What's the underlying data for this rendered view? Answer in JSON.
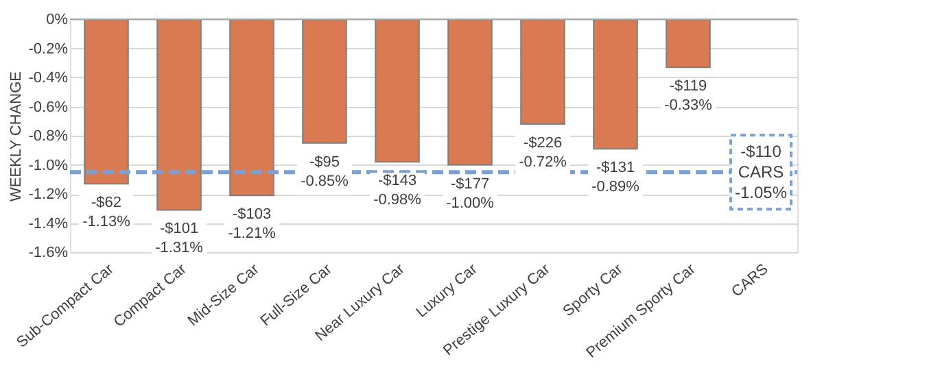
{
  "chart_data": {
    "type": "bar",
    "ylabel": "WEEKLY CHANGE",
    "categories": [
      "Sub-Compact Car",
      "Compact Car",
      "Mid-Size Car",
      "Full-Size Car",
      "Near Luxury Car",
      "Luxury Car",
      "Prestige Luxury Car",
      "Sporty Car",
      "Premium Sporty Car",
      "CARS"
    ],
    "values": [
      -1.13,
      -1.31,
      -1.21,
      -0.85,
      -0.98,
      -1.0,
      -0.72,
      -0.89,
      -0.33,
      null
    ],
    "value_labels": [
      "-$62\n-1.13%",
      "-$101\n-1.31%",
      "-$103\n-1.21%",
      "-$95\n-0.85%",
      "-$143\n-0.98%",
      "-$177\n-1.00%",
      "-$226\n-0.72%",
      "-$131\n-0.89%",
      "-$119\n-0.33%",
      null
    ],
    "color": "#d97a52",
    "ylim": [
      -1.6,
      0
    ],
    "yticks": [
      {
        "value": 0,
        "label": "0%"
      },
      {
        "value": -0.2,
        "label": "-0.2%"
      },
      {
        "value": -0.4,
        "label": "-0.4%"
      },
      {
        "value": -0.6,
        "label": "-0.6%"
      },
      {
        "value": -0.8,
        "label": "-0.8%"
      },
      {
        "value": -1.0,
        "label": "-1.0%"
      },
      {
        "value": -1.2,
        "label": "-1.2%"
      },
      {
        "value": -1.4,
        "label": "-1.4%"
      },
      {
        "value": -1.6,
        "label": "-1.6%"
      }
    ],
    "grid": "y",
    "ref_lines": [
      {
        "axis": "y",
        "value": -1.05,
        "label": "-$110\nCARS\n-1.05%",
        "color": "#7ba0d4",
        "line_style": "dashed"
      }
    ]
  }
}
